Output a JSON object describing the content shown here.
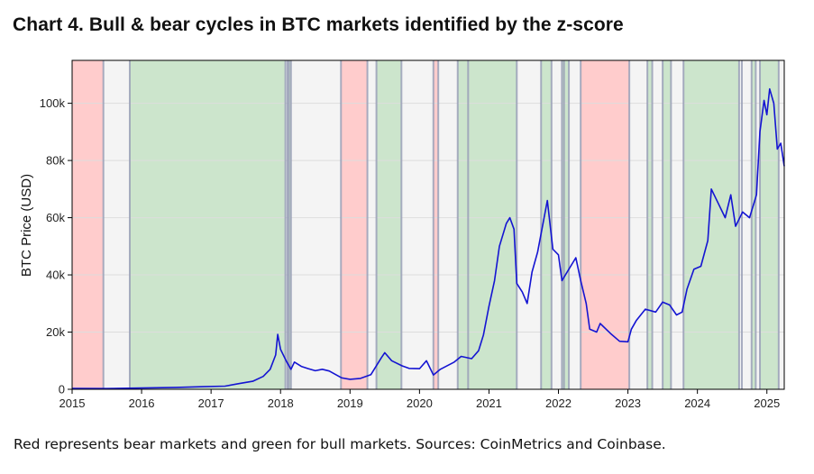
{
  "title": "Chart 4. Bull & bear cycles in BTC markets identified by the z-score",
  "caption": "Red represents bear markets and green for bull markets. Sources: CoinMetrics and Coinbase.",
  "colors": {
    "bear": "#ffcccc",
    "bull": "#cce5cc",
    "neutral": "#f4f4f4",
    "boundary": "#9aa0b8",
    "line": "#1414d2",
    "grid": "#dddddd"
  },
  "chart_data": {
    "type": "line",
    "ylabel": "BTC Price (USD)",
    "xlabel": "",
    "xlim": [
      2015.0,
      2025.25
    ],
    "ylim": [
      0,
      115000
    ],
    "x_ticks": [
      2015,
      2016,
      2017,
      2018,
      2019,
      2020,
      2021,
      2022,
      2023,
      2024,
      2025
    ],
    "y_ticks": [
      {
        "value": 0,
        "label": "0"
      },
      {
        "value": 20000,
        "label": "20k"
      },
      {
        "value": 40000,
        "label": "40k"
      },
      {
        "value": 60000,
        "label": "60k"
      },
      {
        "value": 80000,
        "label": "80k"
      },
      {
        "value": 100000,
        "label": "100k"
      }
    ],
    "grid": true,
    "regimes": [
      {
        "start": 2015.0,
        "end": 2015.45,
        "type": "bear"
      },
      {
        "start": 2015.45,
        "end": 2015.83,
        "type": "neutral"
      },
      {
        "start": 2015.83,
        "end": 2018.07,
        "type": "bull"
      },
      {
        "start": 2018.07,
        "end": 2018.12,
        "type": "neutral"
      },
      {
        "start": 2018.12,
        "end": 2018.15,
        "type": "bull"
      },
      {
        "start": 2018.15,
        "end": 2018.87,
        "type": "neutral"
      },
      {
        "start": 2018.87,
        "end": 2019.25,
        "type": "bear"
      },
      {
        "start": 2019.25,
        "end": 2019.38,
        "type": "neutral"
      },
      {
        "start": 2019.38,
        "end": 2019.74,
        "type": "bull"
      },
      {
        "start": 2019.74,
        "end": 2020.2,
        "type": "neutral"
      },
      {
        "start": 2020.2,
        "end": 2020.27,
        "type": "bear"
      },
      {
        "start": 2020.27,
        "end": 2020.55,
        "type": "neutral"
      },
      {
        "start": 2020.55,
        "end": 2020.7,
        "type": "bull"
      },
      {
        "start": 2020.7,
        "end": 2021.4,
        "type": "bull"
      },
      {
        "start": 2021.4,
        "end": 2021.75,
        "type": "neutral"
      },
      {
        "start": 2021.75,
        "end": 2021.9,
        "type": "bull"
      },
      {
        "start": 2021.9,
        "end": 2022.05,
        "type": "neutral"
      },
      {
        "start": 2022.05,
        "end": 2022.15,
        "type": "bull"
      },
      {
        "start": 2022.15,
        "end": 2022.32,
        "type": "neutral"
      },
      {
        "start": 2022.32,
        "end": 2023.02,
        "type": "bear"
      },
      {
        "start": 2023.02,
        "end": 2023.28,
        "type": "neutral"
      },
      {
        "start": 2023.28,
        "end": 2023.35,
        "type": "bull"
      },
      {
        "start": 2023.35,
        "end": 2023.5,
        "type": "neutral"
      },
      {
        "start": 2023.5,
        "end": 2023.62,
        "type": "bull"
      },
      {
        "start": 2023.62,
        "end": 2023.8,
        "type": "neutral"
      },
      {
        "start": 2023.8,
        "end": 2024.6,
        "type": "bull"
      },
      {
        "start": 2024.6,
        "end": 2024.78,
        "type": "neutral"
      },
      {
        "start": 2024.78,
        "end": 2024.84,
        "type": "bull"
      },
      {
        "start": 2024.84,
        "end": 2024.9,
        "type": "neutral"
      },
      {
        "start": 2024.9,
        "end": 2025.17,
        "type": "bull"
      },
      {
        "start": 2025.17,
        "end": 2025.25,
        "type": "neutral"
      }
    ],
    "boundaries": [
      2015.45,
      2015.83,
      2018.07,
      2018.1,
      2018.12,
      2018.15,
      2018.87,
      2019.25,
      2019.38,
      2019.74,
      2020.2,
      2020.27,
      2020.55,
      2020.7,
      2021.4,
      2021.75,
      2021.9,
      2022.05,
      2022.08,
      2022.15,
      2022.32,
      2023.02,
      2023.28,
      2023.35,
      2023.5,
      2023.62,
      2023.8,
      2024.6,
      2024.64,
      2024.78,
      2024.84,
      2024.9,
      2025.17
    ],
    "series": [
      {
        "values": [
          [
            2015.0,
            300
          ],
          [
            2015.5,
            250
          ],
          [
            2016.0,
            430
          ],
          [
            2016.5,
            650
          ],
          [
            2016.9,
            900
          ],
          [
            2017.2,
            1100
          ],
          [
            2017.4,
            2000
          ],
          [
            2017.6,
            2800
          ],
          [
            2017.75,
            4500
          ],
          [
            2017.85,
            7000
          ],
          [
            2017.93,
            12000
          ],
          [
            2017.96,
            19200
          ],
          [
            2018.0,
            14000
          ],
          [
            2018.08,
            10000
          ],
          [
            2018.15,
            7000
          ],
          [
            2018.2,
            9500
          ],
          [
            2018.3,
            8000
          ],
          [
            2018.4,
            7200
          ],
          [
            2018.5,
            6500
          ],
          [
            2018.6,
            7000
          ],
          [
            2018.7,
            6400
          ],
          [
            2018.88,
            4000
          ],
          [
            2019.0,
            3500
          ],
          [
            2019.15,
            3800
          ],
          [
            2019.3,
            5100
          ],
          [
            2019.45,
            11000
          ],
          [
            2019.5,
            12800
          ],
          [
            2019.6,
            10000
          ],
          [
            2019.75,
            8200
          ],
          [
            2019.85,
            7300
          ],
          [
            2020.0,
            7200
          ],
          [
            2020.1,
            10000
          ],
          [
            2020.2,
            5000
          ],
          [
            2020.3,
            7000
          ],
          [
            2020.5,
            9500
          ],
          [
            2020.6,
            11500
          ],
          [
            2020.75,
            10700
          ],
          [
            2020.85,
            13500
          ],
          [
            2020.92,
            19000
          ],
          [
            2021.0,
            29000
          ],
          [
            2021.08,
            38000
          ],
          [
            2021.15,
            50000
          ],
          [
            2021.25,
            58000
          ],
          [
            2021.3,
            60000
          ],
          [
            2021.36,
            56000
          ],
          [
            2021.4,
            37000
          ],
          [
            2021.48,
            34000
          ],
          [
            2021.55,
            30000
          ],
          [
            2021.62,
            41000
          ],
          [
            2021.7,
            48000
          ],
          [
            2021.77,
            57000
          ],
          [
            2021.84,
            66000
          ],
          [
            2021.92,
            49000
          ],
          [
            2022.0,
            47000
          ],
          [
            2022.05,
            38000
          ],
          [
            2022.15,
            42000
          ],
          [
            2022.25,
            46000
          ],
          [
            2022.32,
            38000
          ],
          [
            2022.4,
            30000
          ],
          [
            2022.45,
            21000
          ],
          [
            2022.55,
            20000
          ],
          [
            2022.6,
            23000
          ],
          [
            2022.75,
            19500
          ],
          [
            2022.88,
            16800
          ],
          [
            2023.0,
            16600
          ],
          [
            2023.05,
            21000
          ],
          [
            2023.12,
            24000
          ],
          [
            2023.25,
            28000
          ],
          [
            2023.4,
            27000
          ],
          [
            2023.5,
            30500
          ],
          [
            2023.6,
            29500
          ],
          [
            2023.7,
            26000
          ],
          [
            2023.78,
            27000
          ],
          [
            2023.85,
            35000
          ],
          [
            2023.95,
            42000
          ],
          [
            2024.05,
            43000
          ],
          [
            2024.15,
            52000
          ],
          [
            2024.2,
            70000
          ],
          [
            2024.3,
            65000
          ],
          [
            2024.4,
            60000
          ],
          [
            2024.48,
            68000
          ],
          [
            2024.55,
            57000
          ],
          [
            2024.65,
            62000
          ],
          [
            2024.75,
            60000
          ],
          [
            2024.85,
            68000
          ],
          [
            2024.9,
            90000
          ],
          [
            2024.96,
            101000
          ],
          [
            2025.0,
            96000
          ],
          [
            2025.04,
            105000
          ],
          [
            2025.1,
            100000
          ],
          [
            2025.15,
            84000
          ],
          [
            2025.2,
            86000
          ],
          [
            2025.25,
            78000
          ]
        ]
      }
    ]
  }
}
